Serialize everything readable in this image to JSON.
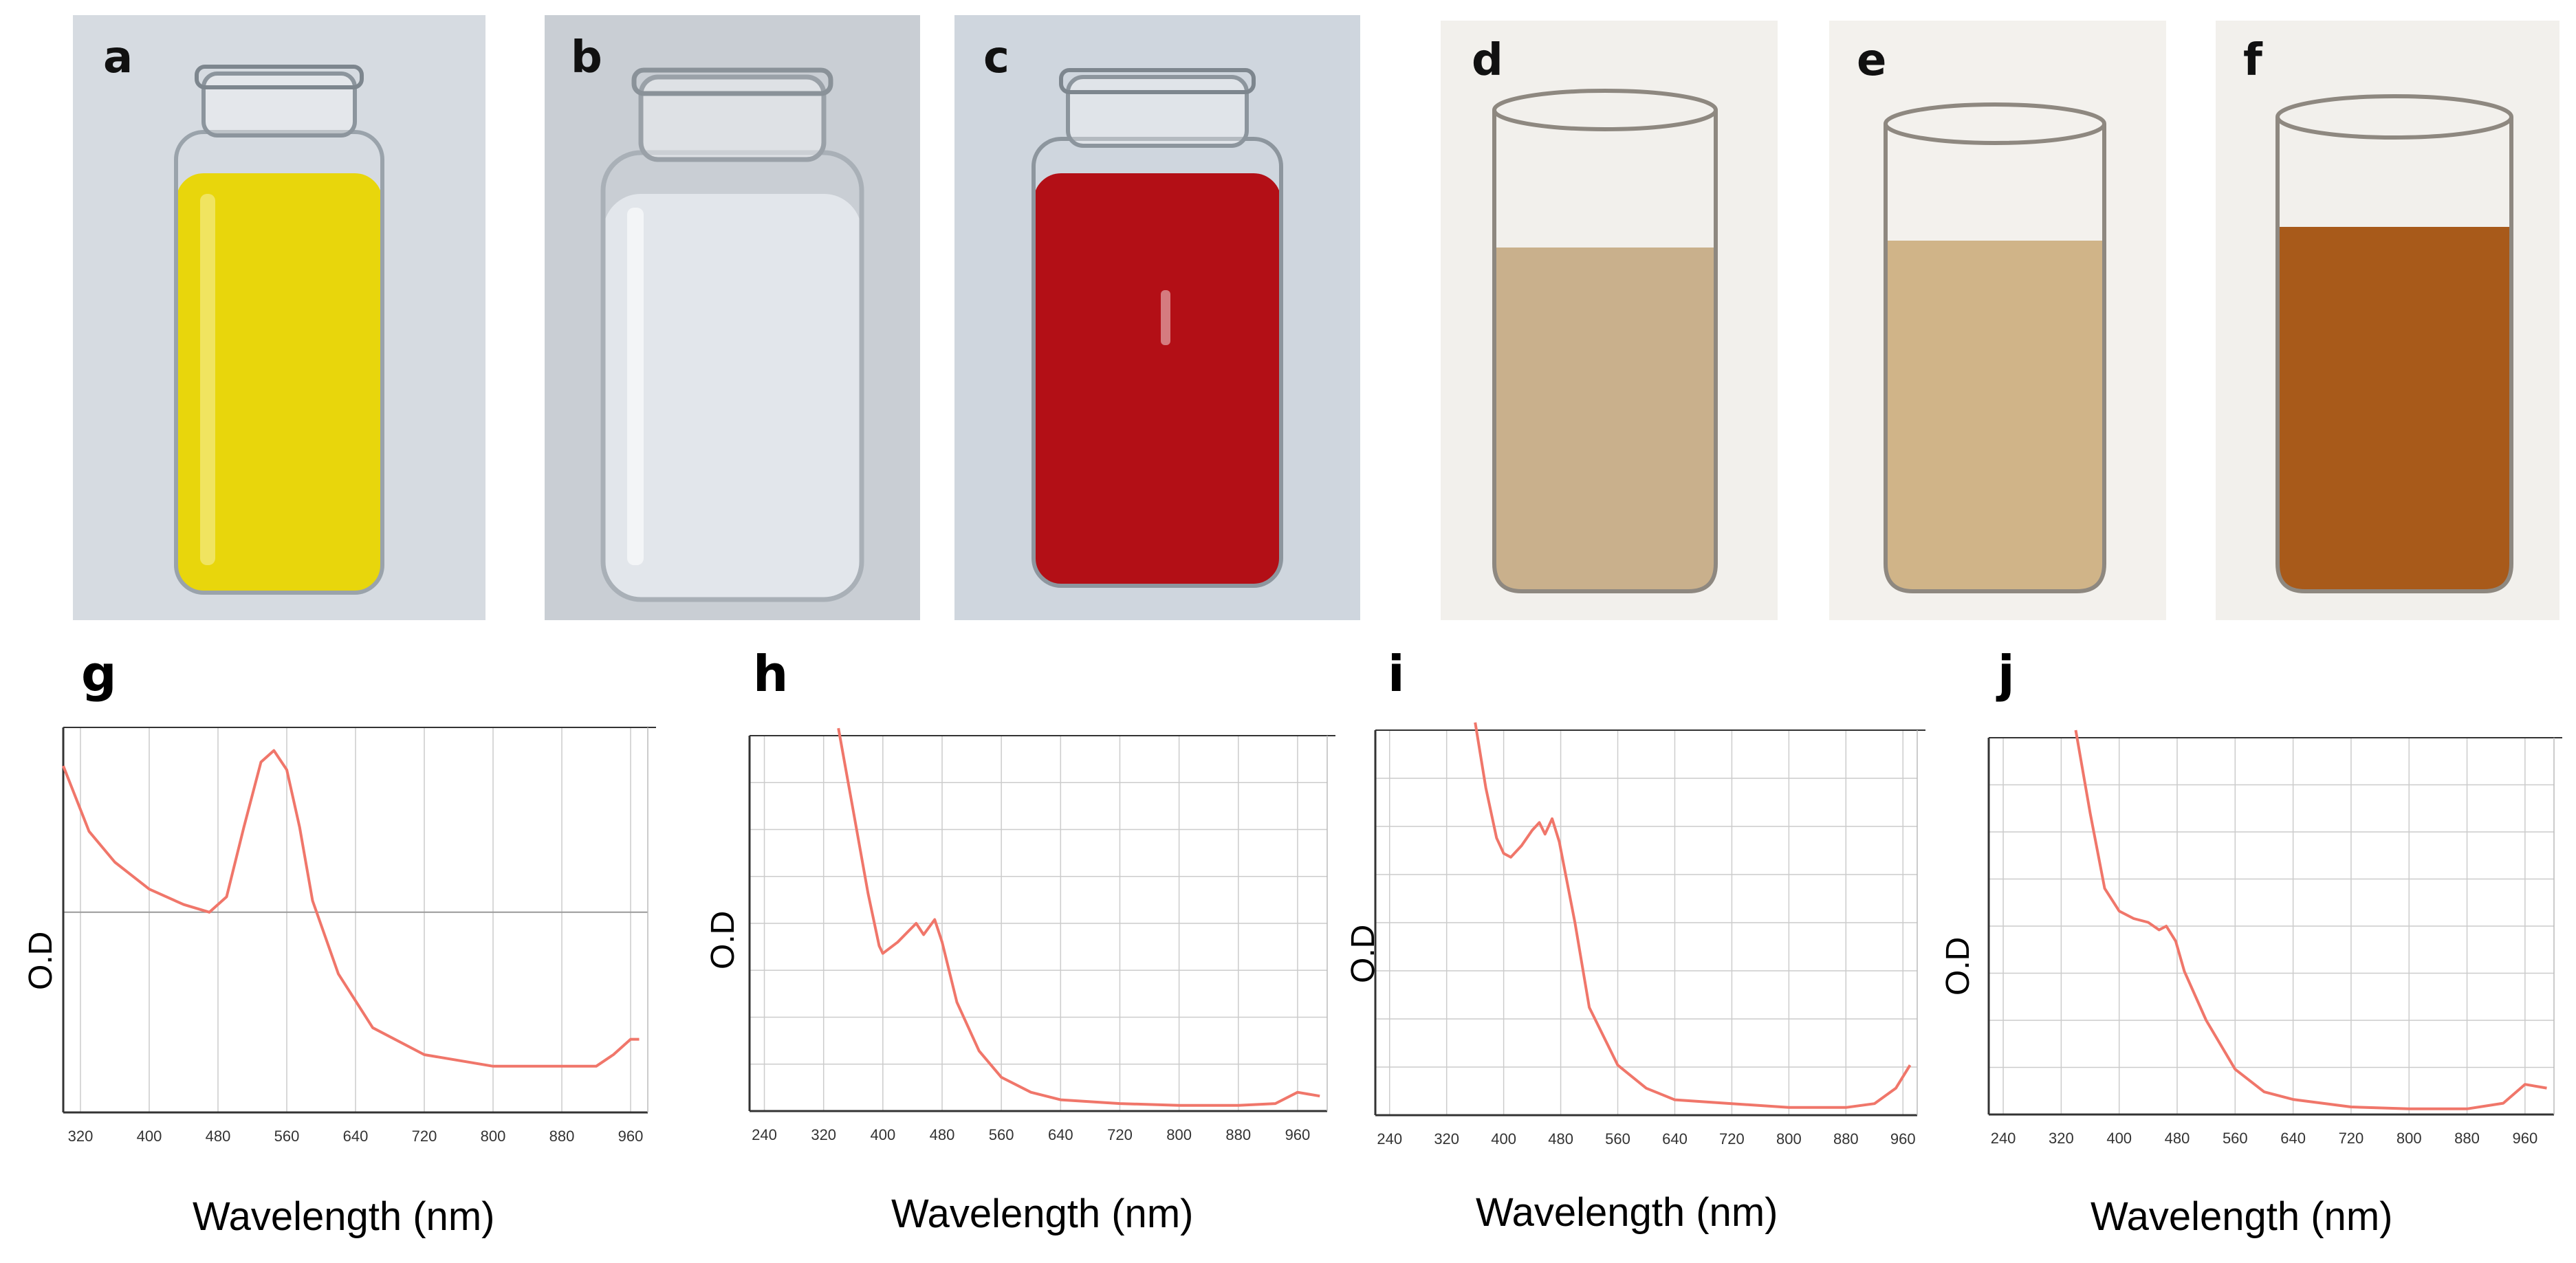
{
  "photos": [
    {
      "label": "a",
      "liquid": "#e8d60c",
      "bg": "#d6dbe1",
      "kind": "vial"
    },
    {
      "label": "b",
      "liquid": "#e8ecf0",
      "bg": "#c9ced4",
      "kind": "vial"
    },
    {
      "label": "c",
      "liquid": "#b30f16",
      "bg": "#cfd6de",
      "kind": "vial"
    },
    {
      "label": "d",
      "liquid": "#c9b08c",
      "bg": "#f2f0ec",
      "kind": "beaker"
    },
    {
      "label": "e",
      "liquid": "#d0b488",
      "bg": "#f3f1ed",
      "kind": "beaker"
    },
    {
      "label": "f",
      "liquid": "#a85a1a",
      "bg": "#f2f0ec",
      "kind": "beaker"
    }
  ],
  "colors": {
    "line": "#f0766a",
    "grid": "#cccccc",
    "axis": "#333333"
  },
  "chart_data": [
    {
      "panel": "g",
      "type": "line",
      "xlabel": "Wavelength (nm)",
      "ylabel": "O.D",
      "xlim": [
        300,
        980
      ],
      "ylim": [
        0,
        1
      ],
      "xticks": [
        320,
        400,
        480,
        560,
        640,
        720,
        800,
        880,
        960
      ],
      "grid": "vertical",
      "x": [
        300,
        330,
        360,
        400,
        440,
        470,
        490,
        510,
        530,
        545,
        560,
        575,
        590,
        620,
        660,
        720,
        800,
        860,
        920,
        940,
        960,
        970
      ],
      "y": [
        0.9,
        0.73,
        0.65,
        0.58,
        0.54,
        0.52,
        0.56,
        0.74,
        0.91,
        0.94,
        0.89,
        0.74,
        0.55,
        0.36,
        0.22,
        0.15,
        0.12,
        0.12,
        0.12,
        0.15,
        0.19,
        0.19
      ]
    },
    {
      "panel": "h",
      "type": "line",
      "xlabel": "Wavelength (nm)",
      "ylabel": "O.D",
      "xlim": [
        220,
        1000
      ],
      "ylim": [
        0,
        1
      ],
      "xticks": [
        240,
        320,
        400,
        480,
        560,
        640,
        720,
        800,
        880,
        960
      ],
      "grid": "both",
      "x": [
        340,
        360,
        380,
        395,
        400,
        420,
        435,
        445,
        455,
        470,
        480,
        500,
        530,
        560,
        600,
        640,
        720,
        800,
        880,
        930,
        960,
        990
      ],
      "y": [
        1.02,
        0.8,
        0.58,
        0.44,
        0.42,
        0.45,
        0.48,
        0.5,
        0.47,
        0.51,
        0.45,
        0.29,
        0.16,
        0.09,
        0.05,
        0.03,
        0.02,
        0.015,
        0.015,
        0.02,
        0.05,
        0.04
      ]
    },
    {
      "panel": "i",
      "type": "line",
      "xlabel": "Wavelength (nm)",
      "ylabel": "O.D",
      "xlim": [
        220,
        980
      ],
      "ylim": [
        0,
        1
      ],
      "xticks": [
        240,
        320,
        400,
        480,
        560,
        640,
        720,
        800,
        880,
        960
      ],
      "grid": "both",
      "x": [
        360,
        375,
        390,
        400,
        410,
        425,
        440,
        450,
        458,
        468,
        478,
        500,
        520,
        560,
        600,
        640,
        720,
        800,
        880,
        920,
        950,
        970
      ],
      "y": [
        1.02,
        0.85,
        0.72,
        0.68,
        0.67,
        0.7,
        0.74,
        0.76,
        0.73,
        0.77,
        0.71,
        0.5,
        0.28,
        0.13,
        0.07,
        0.04,
        0.03,
        0.02,
        0.02,
        0.03,
        0.07,
        0.13
      ]
    },
    {
      "panel": "j",
      "type": "line",
      "xlabel": "Wavelength (nm)",
      "ylabel": "O.D",
      "xlim": [
        220,
        1000
      ],
      "ylim": [
        0,
        1
      ],
      "xticks": [
        240,
        320,
        400,
        480,
        560,
        640,
        720,
        800,
        880,
        960
      ],
      "grid": "both",
      "x": [
        340,
        360,
        380,
        400,
        420,
        440,
        455,
        465,
        478,
        490,
        520,
        560,
        600,
        640,
        720,
        800,
        880,
        930,
        960,
        990
      ],
      "y": [
        1.02,
        0.8,
        0.6,
        0.54,
        0.52,
        0.51,
        0.49,
        0.5,
        0.46,
        0.38,
        0.25,
        0.12,
        0.06,
        0.04,
        0.02,
        0.015,
        0.015,
        0.03,
        0.08,
        0.07
      ]
    }
  ]
}
